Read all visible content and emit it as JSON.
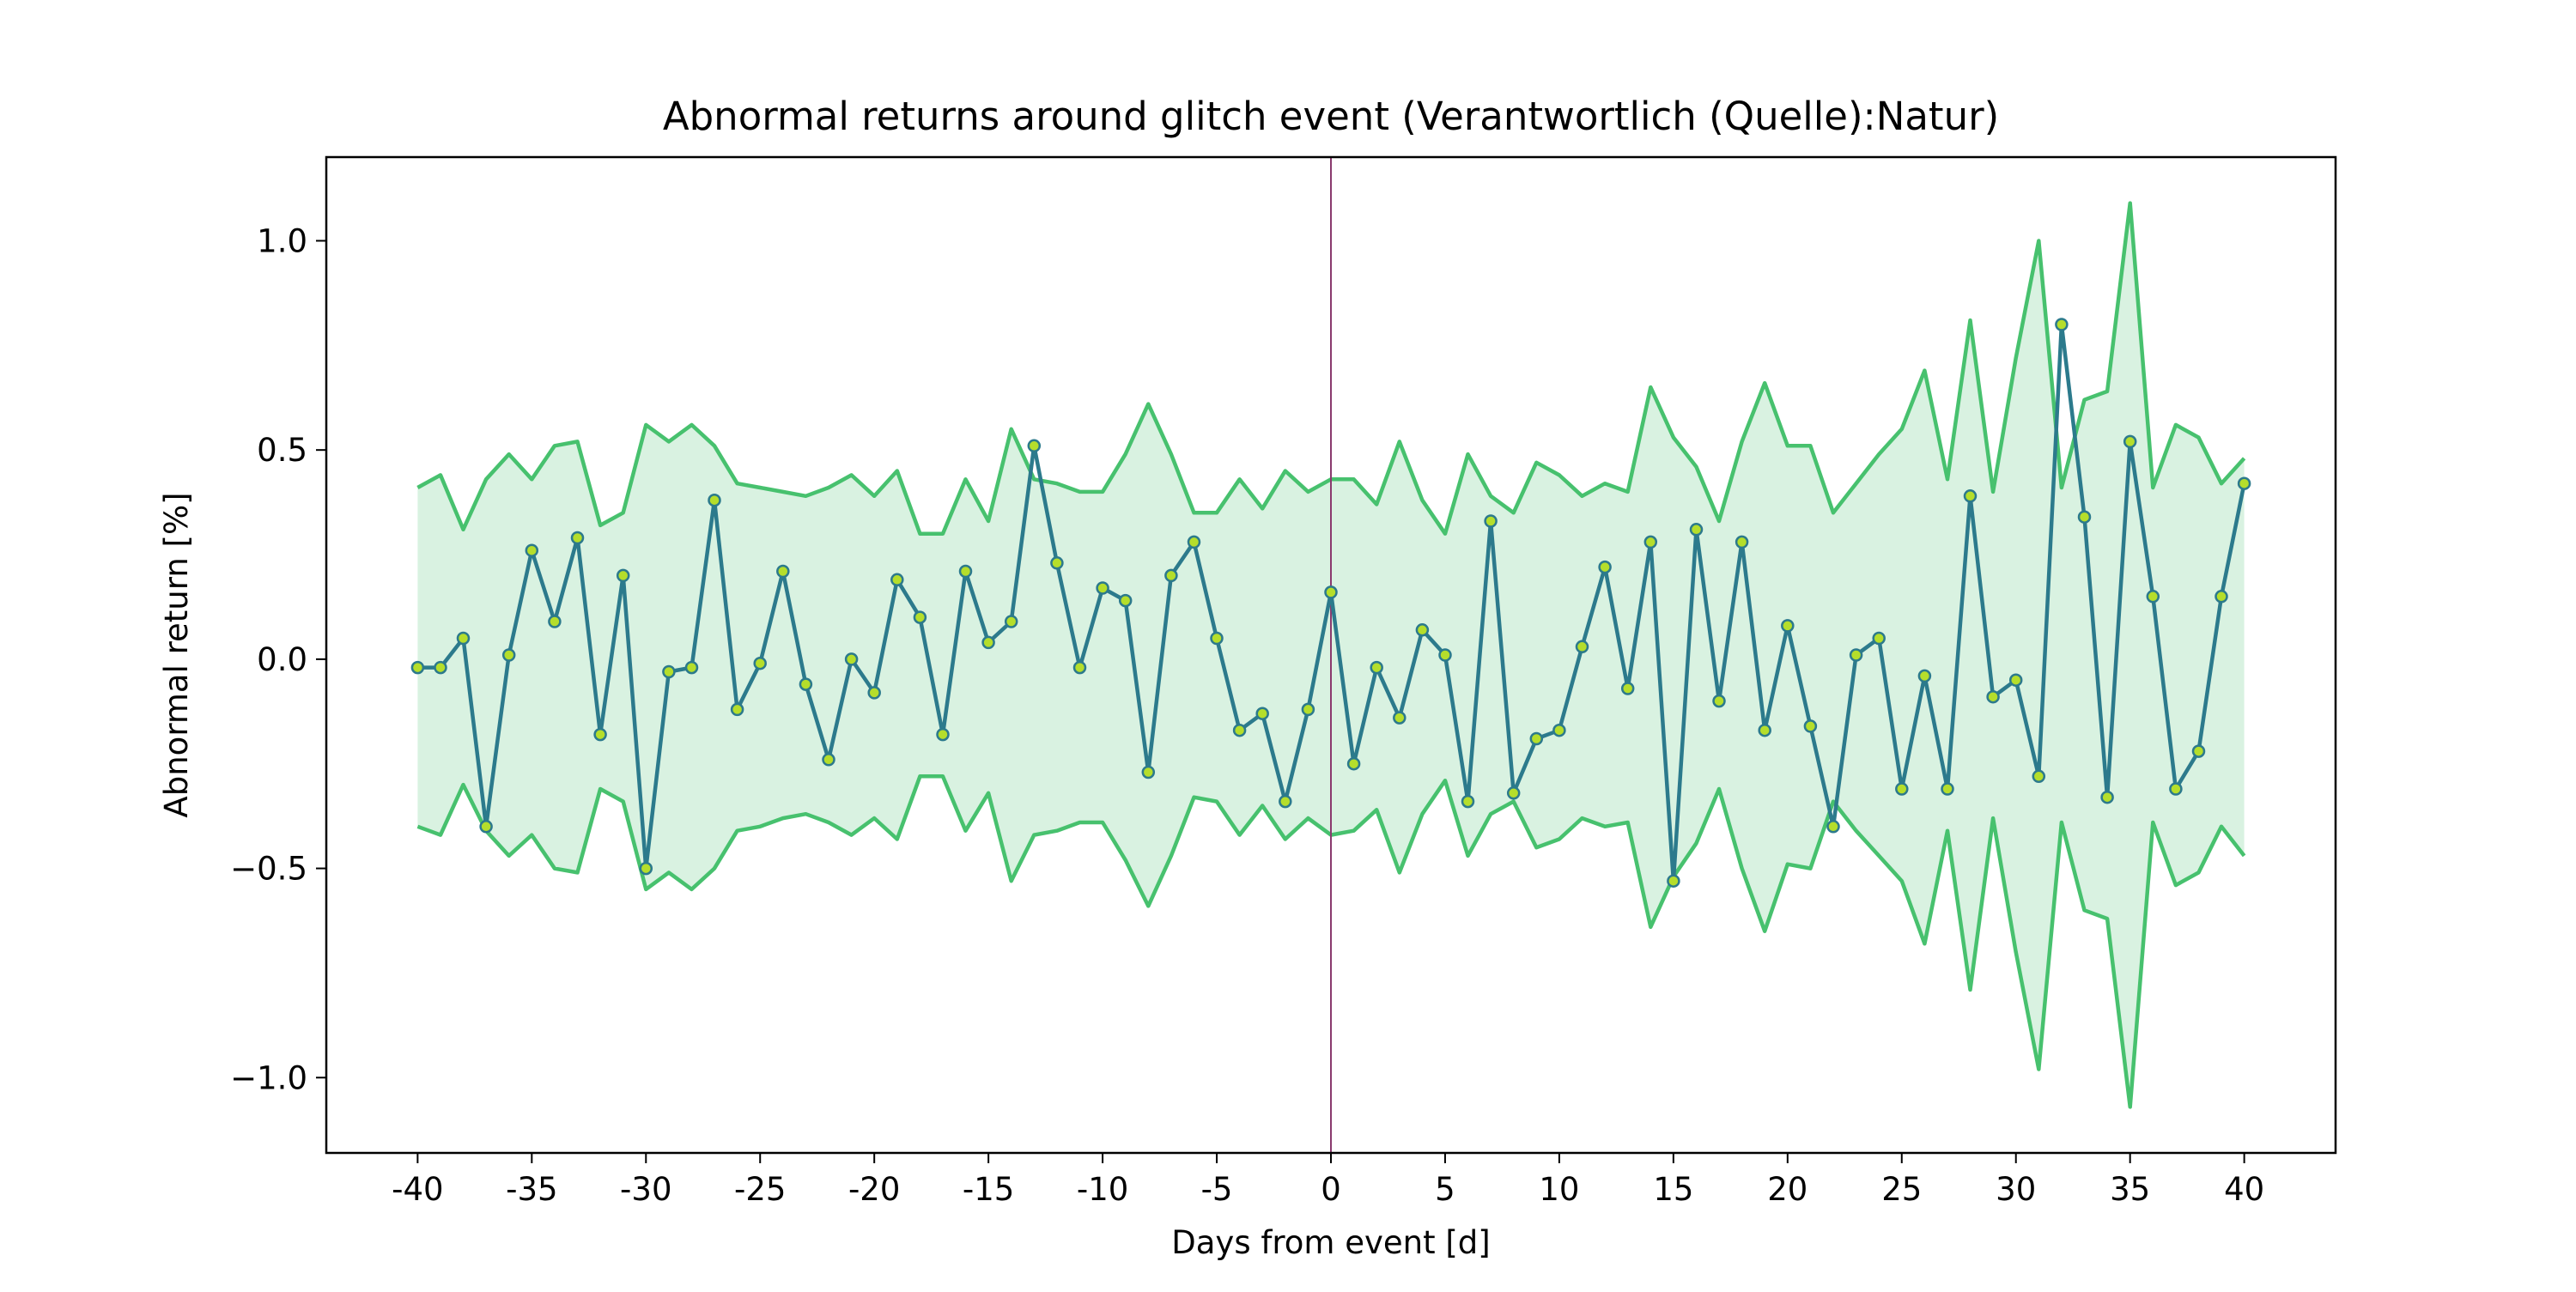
{
  "chart_data": {
    "type": "line",
    "title": "Abnormal returns around glitch event (Verantwortlich (Quelle):Natur)",
    "xlabel": "Days from event [d]",
    "ylabel": "Abnormal return [%]",
    "xlim": [
      -44,
      44
    ],
    "ylim": [
      -1.18,
      1.2
    ],
    "xticks": [
      -40,
      -35,
      -30,
      -25,
      -20,
      -15,
      -10,
      -5,
      0,
      5,
      10,
      15,
      20,
      25,
      30,
      35,
      40
    ],
    "xtick_labels": [
      "-40",
      "-35",
      "-30",
      "-25",
      "-20",
      "-15",
      "-10",
      "-5",
      "0",
      "5",
      "10",
      "15",
      "20",
      "25",
      "30",
      "35",
      "40"
    ],
    "yticks": [
      -1.0,
      -0.5,
      0.0,
      0.5,
      1.0
    ],
    "ytick_labels": [
      "−1.0",
      "−0.5",
      "0.0",
      "0.5",
      "1.0"
    ],
    "grid": false,
    "event_line_x": 0,
    "x": [
      -40,
      -39,
      -38,
      -37,
      -36,
      -35,
      -34,
      -33,
      -32,
      -31,
      -30,
      -29,
      -28,
      -27,
      -26,
      -25,
      -24,
      -23,
      -22,
      -21,
      -20,
      -19,
      -18,
      -17,
      -16,
      -15,
      -14,
      -13,
      -12,
      -11,
      -10,
      -9,
      -8,
      -7,
      -6,
      -5,
      -4,
      -3,
      -2,
      -1,
      0,
      1,
      2,
      3,
      4,
      5,
      6,
      7,
      8,
      9,
      10,
      11,
      12,
      13,
      14,
      15,
      16,
      17,
      18,
      19,
      20,
      21,
      22,
      23,
      24,
      25,
      26,
      27,
      28,
      29,
      30,
      31,
      32,
      33,
      34,
      35,
      36,
      37,
      38,
      39,
      40
    ],
    "series": [
      {
        "role": "abnormal-return",
        "values": [
          -0.02,
          -0.02,
          0.05,
          -0.4,
          0.01,
          0.26,
          0.09,
          0.29,
          -0.18,
          0.2,
          -0.5,
          -0.03,
          -0.02,
          0.38,
          -0.12,
          -0.01,
          0.21,
          -0.06,
          -0.24,
          0.0,
          -0.08,
          0.19,
          0.1,
          -0.18,
          0.21,
          0.04,
          0.09,
          0.51,
          0.23,
          -0.02,
          0.17,
          0.14,
          -0.27,
          0.2,
          0.28,
          0.05,
          -0.17,
          -0.13,
          -0.34,
          -0.12,
          0.16,
          -0.25,
          -0.02,
          -0.14,
          0.07,
          0.01,
          -0.34,
          0.33,
          -0.32,
          -0.19,
          -0.17,
          0.03,
          0.22,
          -0.07,
          0.28,
          -0.53,
          0.31,
          -0.1,
          0.28,
          -0.17,
          0.08,
          -0.16,
          -0.4,
          0.01,
          0.05,
          -0.31,
          -0.04,
          -0.31,
          0.39,
          -0.09,
          -0.05,
          -0.28,
          0.8,
          0.34,
          -0.33,
          0.52,
          0.15,
          -0.31,
          -0.22,
          0.15,
          0.42
        ]
      },
      {
        "role": "upper-band",
        "values": [
          0.41,
          0.44,
          0.31,
          0.43,
          0.49,
          0.43,
          0.51,
          0.52,
          0.32,
          0.35,
          0.56,
          0.52,
          0.56,
          0.51,
          0.42,
          0.41,
          0.4,
          0.39,
          0.41,
          0.44,
          0.39,
          0.45,
          0.3,
          0.3,
          0.43,
          0.33,
          0.55,
          0.43,
          0.42,
          0.4,
          0.4,
          0.49,
          0.61,
          0.49,
          0.35,
          0.35,
          0.43,
          0.36,
          0.45,
          0.4,
          0.43,
          0.43,
          0.37,
          0.52,
          0.38,
          0.3,
          0.49,
          0.39,
          0.35,
          0.47,
          0.44,
          0.39,
          0.42,
          0.4,
          0.65,
          0.53,
          0.46,
          0.33,
          0.52,
          0.66,
          0.51,
          0.51,
          0.35,
          0.42,
          0.49,
          0.55,
          0.69,
          0.43,
          0.81,
          0.4,
          0.72,
          1.0,
          0.41,
          0.62,
          0.64,
          1.09,
          0.41,
          0.56,
          0.53,
          0.42,
          0.48
        ]
      },
      {
        "role": "lower-band",
        "values": [
          -0.4,
          -0.42,
          -0.3,
          -0.41,
          -0.47,
          -0.42,
          -0.5,
          -0.51,
          -0.31,
          -0.34,
          -0.55,
          -0.51,
          -0.55,
          -0.5,
          -0.41,
          -0.4,
          -0.38,
          -0.37,
          -0.39,
          -0.42,
          -0.38,
          -0.43,
          -0.28,
          -0.28,
          -0.41,
          -0.32,
          -0.53,
          -0.42,
          -0.41,
          -0.39,
          -0.39,
          -0.48,
          -0.59,
          -0.47,
          -0.33,
          -0.34,
          -0.42,
          -0.35,
          -0.43,
          -0.38,
          -0.42,
          -0.41,
          -0.36,
          -0.51,
          -0.37,
          -0.29,
          -0.47,
          -0.37,
          -0.34,
          -0.45,
          -0.43,
          -0.38,
          -0.4,
          -0.39,
          -0.64,
          -0.52,
          -0.44,
          -0.31,
          -0.5,
          -0.65,
          -0.49,
          -0.5,
          -0.34,
          -0.41,
          -0.47,
          -0.53,
          -0.68,
          -0.41,
          -0.79,
          -0.38,
          -0.7,
          -0.98,
          -0.39,
          -0.6,
          -0.62,
          -1.07,
          -0.39,
          -0.54,
          -0.51,
          -0.4,
          -0.47
        ]
      }
    ],
    "colors": {
      "line": "#2c7a8c",
      "marker_fill": "#b5de2b",
      "marker_edge": "#2c7a8c",
      "band_line": "#47c16e",
      "band_fill": "#d9f2e1",
      "event_line": "#8a3a6e"
    }
  }
}
